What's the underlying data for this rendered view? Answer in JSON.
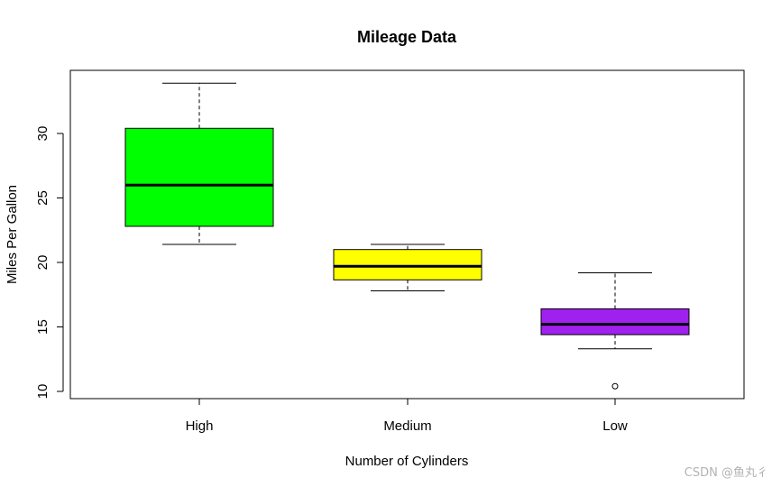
{
  "chart_data": {
    "type": "box",
    "title": "Mileage Data",
    "xlabel": "Number of Cylinders",
    "ylabel": "Miles Per Gallon",
    "ylim": [
      9.5,
      35
    ],
    "yticks": [
      10,
      15,
      20,
      25,
      30
    ],
    "categories": [
      "High",
      "Medium",
      "Low"
    ],
    "boxes": [
      {
        "name": "High",
        "min": 21.4,
        "q1": 22.8,
        "median": 26.0,
        "q3": 30.4,
        "max": 33.9,
        "outliers": [],
        "color": "#00ff00"
      },
      {
        "name": "Medium",
        "min": 17.8,
        "q1": 18.65,
        "median": 19.7,
        "q3": 21.0,
        "max": 21.4,
        "outliers": [],
        "color": "#ffff00"
      },
      {
        "name": "Low",
        "min": 13.3,
        "q1": 14.4,
        "median": 15.2,
        "q3": 16.4,
        "max": 19.2,
        "outliers": [
          10.4
        ],
        "color": "#a020f0"
      }
    ]
  },
  "watermark": "CSDN @鱼丸彳"
}
